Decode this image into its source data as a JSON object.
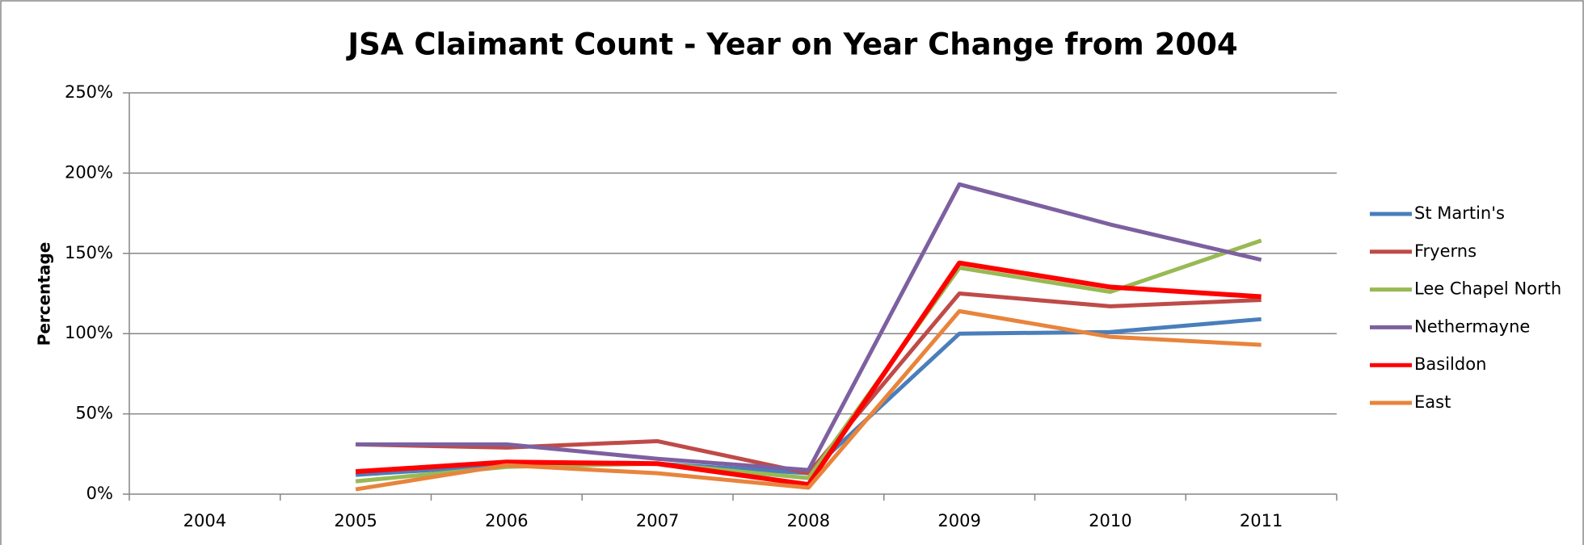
{
  "chart_data": {
    "type": "line",
    "title": "JSA Claimant Count - Year on Year Change from 2004",
    "y_label": "Percentage",
    "categories": [
      "2004",
      "2005",
      "2006",
      "2007",
      "2008",
      "2009",
      "2010",
      "2011"
    ],
    "series": [
      {
        "name": "St Martin's",
        "color": "#4a7ebb",
        "values": [
          null,
          12,
          18,
          19,
          13,
          100,
          101,
          109
        ]
      },
      {
        "name": "Fryerns",
        "color": "#be4b48",
        "values": [
          null,
          31,
          29,
          33,
          13,
          125,
          117,
          121
        ]
      },
      {
        "name": "Lee Chapel North",
        "color": "#98b954",
        "values": [
          null,
          8,
          17,
          19,
          10,
          141,
          126,
          158
        ]
      },
      {
        "name": "Nethermayne",
        "color": "#7d60a0",
        "values": [
          null,
          31,
          31,
          22,
          15,
          193,
          168,
          146
        ]
      },
      {
        "name": "Basildon",
        "color": "#ff0000",
        "values": [
          null,
          14,
          20,
          19,
          6,
          144,
          129,
          123
        ]
      },
      {
        "name": "East",
        "color": "#e8843c",
        "values": [
          null,
          3,
          18,
          13,
          4,
          114,
          98,
          93
        ]
      }
    ],
    "ylim": [
      0,
      250
    ],
    "yticks": [
      {
        "value": 0,
        "label": "0%"
      },
      {
        "value": 50,
        "label": "50%"
      },
      {
        "value": 100,
        "label": "100%"
      },
      {
        "value": 150,
        "label": "150%"
      },
      {
        "value": 200,
        "label": "200%"
      },
      {
        "value": 250,
        "label": "250%"
      }
    ],
    "grid": true,
    "legend": "right"
  }
}
